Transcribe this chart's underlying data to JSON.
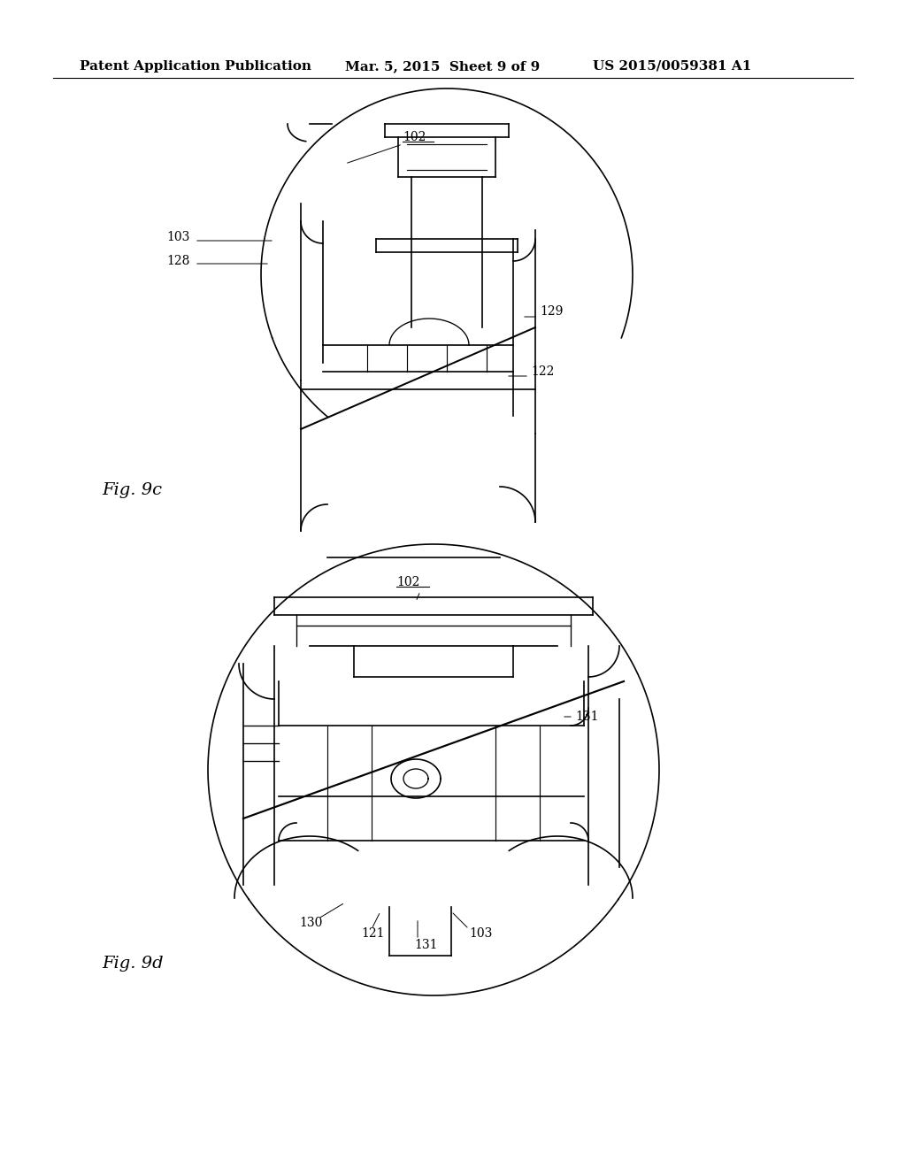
{
  "background_color": "#ffffff",
  "header_left": "Patent Application Publication",
  "header_center": "Mar. 5, 2015  Sheet 9 of 9",
  "header_right": "US 2015/0059381 A1",
  "header_fontsize": 11,
  "fig_label_9c": "Fig. 9c",
  "fig_label_9d": "Fig. 9d",
  "fig_label_fontsize": 14,
  "annotation_fontsize": 10,
  "line_color": "#000000"
}
